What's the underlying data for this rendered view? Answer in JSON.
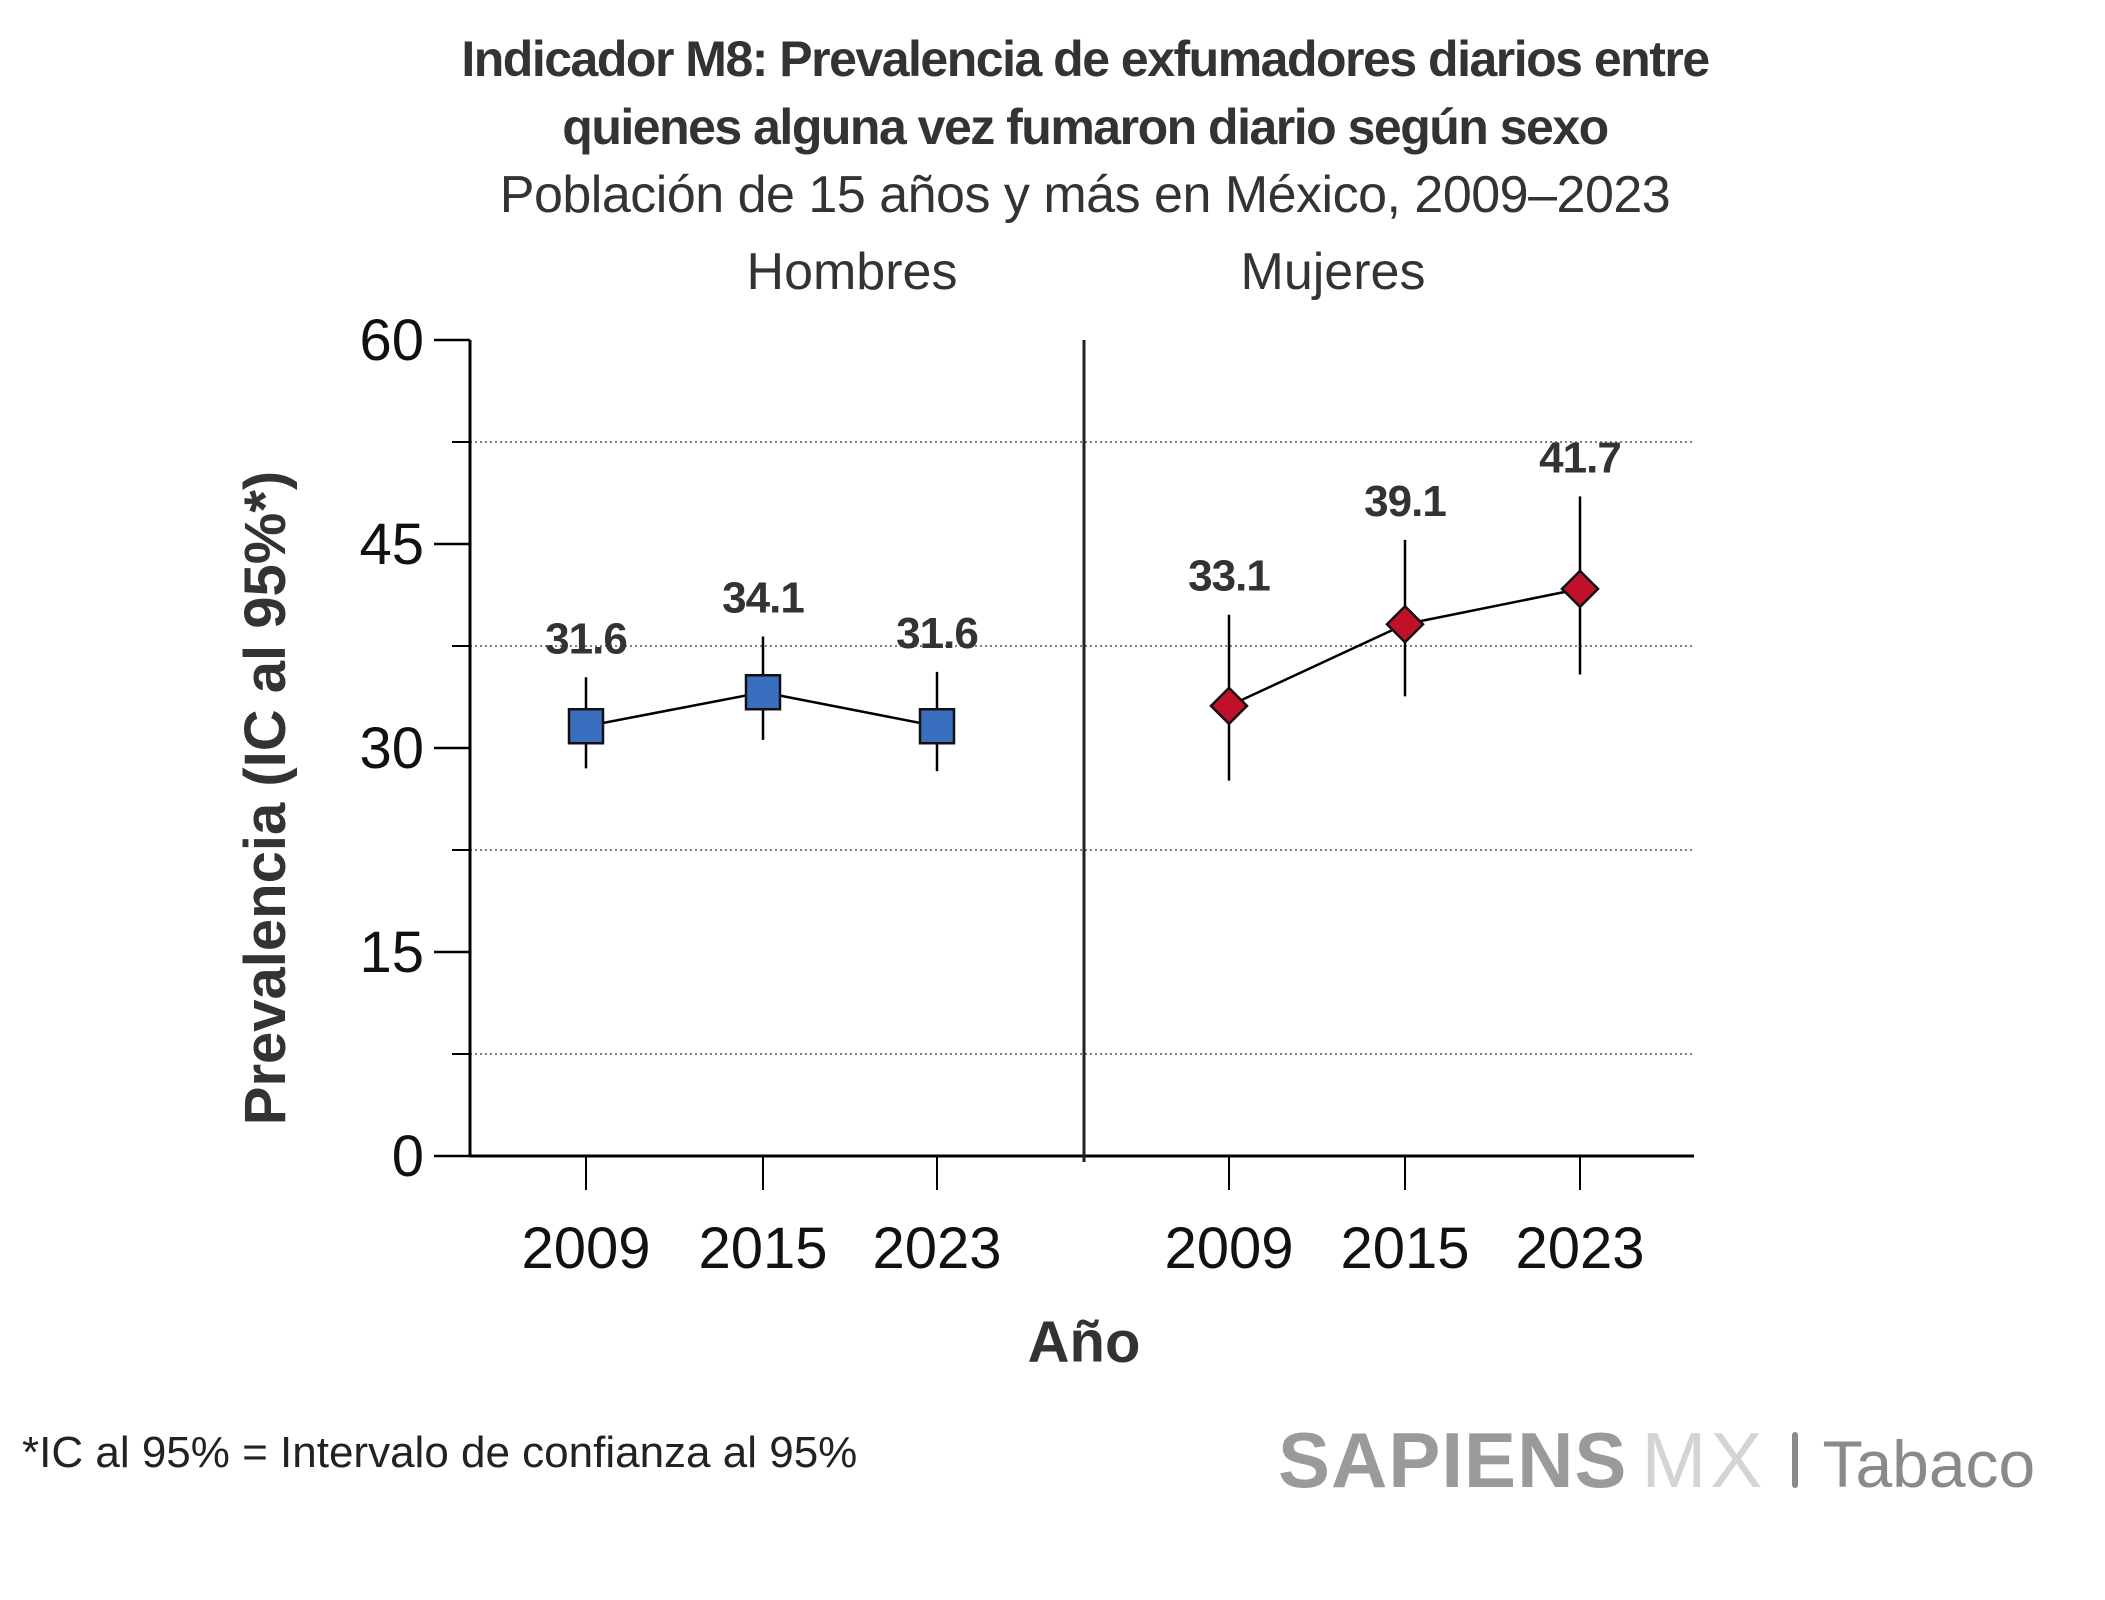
{
  "title_line1": "Indicador M8: Prevalencia de exfumadores diarios entre",
  "title_line2": "quienes alguna vez fumaron diario según sexo",
  "subtitle": "Población de 15 años y más en México, 2009–2023",
  "footnote": "*IC al 95% = Intervalo de confianza al 95%",
  "logo": {
    "brand": "SAPIENS",
    "brand_suffix": "MX",
    "section": "Tabaco"
  },
  "chart_data": {
    "type": "scatter",
    "title": "Indicador M8: Prevalencia de exfumadores diarios entre quienes alguna vez fumaron diario según sexo",
    "subtitle": "Población de 15 años y más en México, 2009–2023",
    "xlabel": "Año",
    "ylabel": "Prevalencia (IC al 95%*)",
    "ylim": [
      0,
      60
    ],
    "yticks": [
      0,
      15,
      30,
      45,
      60
    ],
    "ytick_labels": [
      "0",
      "15",
      "30",
      "45",
      "60"
    ],
    "minor_gridlines": [
      7.5,
      22.5,
      37.5,
      52.5
    ],
    "grid": "dotted horizontal at minor ticks",
    "categories": [
      "2009",
      "2015",
      "2023"
    ],
    "panels": [
      {
        "name": "Hombres",
        "marker": "square",
        "color": "#3a6fc0",
        "values": [
          31.6,
          34.1,
          31.6
        ],
        "labels": [
          "31.6",
          "34.1",
          "31.6"
        ],
        "ci_lower": [
          28.5,
          30.6,
          28.3
        ],
        "ci_upper": [
          35.2,
          38.2,
          35.6
        ]
      },
      {
        "name": "Mujeres",
        "marker": "diamond",
        "color": "#c0102a",
        "values": [
          33.1,
          39.1,
          41.7
        ],
        "labels": [
          "33.1",
          "39.1",
          "41.7"
        ],
        "ci_lower": [
          27.6,
          33.8,
          35.4
        ],
        "ci_upper": [
          39.8,
          45.3,
          48.5
        ]
      }
    ]
  }
}
